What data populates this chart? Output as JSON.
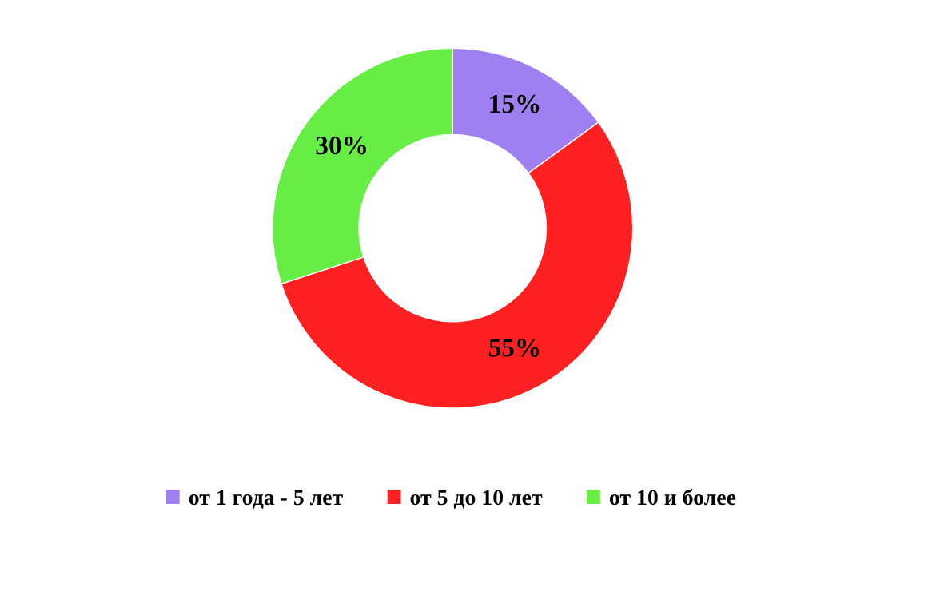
{
  "chart_data": {
    "type": "donut",
    "categories": [
      "от 1 года - 5 лет",
      "от 5 до 10 лет",
      "от 10 и более"
    ],
    "values": [
      15,
      55,
      30
    ],
    "colors": [
      "#9f7ff2",
      "#ff2121",
      "#66ee44"
    ],
    "value_labels": [
      "15%",
      "55%",
      "30%"
    ],
    "legend": "bottom"
  }
}
